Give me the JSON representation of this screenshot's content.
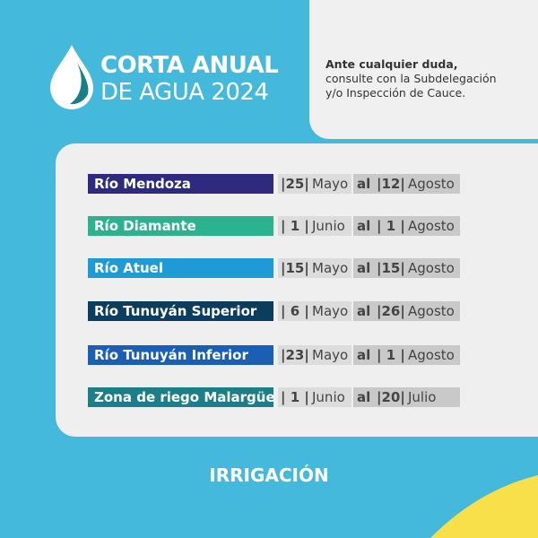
{
  "header": {
    "title_line1": "CORTA ANUAL",
    "title_line2": "DE AGUA 2024"
  },
  "note": {
    "lead": "Ante cualquier duda,",
    "line2": "consulte con la Subdelegación",
    "line3": "y/o Inspección de Cauce."
  },
  "connector": "al",
  "rows": [
    {
      "name": "Río Mendoza",
      "color": "#2e2a7e",
      "from_day": "|25|",
      "from_month": "Mayo",
      "to_day": "|12|",
      "to_month": "Agosto"
    },
    {
      "name": "Río Diamante",
      "color": "#2bb28e",
      "from_day": "| 1 |",
      "from_month": "Junio",
      "to_day": "| 1 |",
      "to_month": "Agosto"
    },
    {
      "name": "Río Atuel",
      "color": "#1e9bd7",
      "from_day": "|15|",
      "from_month": "Mayo",
      "to_day": "|15|",
      "to_month": "Agosto"
    },
    {
      "name": "Río Tunuyán Superior",
      "color": "#0d3d5c",
      "from_day": "| 6 |",
      "from_month": "Mayo",
      "to_day": "|26|",
      "to_month": "Agosto"
    },
    {
      "name": "Río Tunuyán Inferior",
      "color": "#1a5fb4",
      "from_day": "|23|",
      "from_month": "Mayo",
      "to_day": "| 1 |",
      "to_month": "Agosto"
    },
    {
      "name": "Zona de riego Malargüe",
      "color": "#1a7f86",
      "from_day": "| 1 |",
      "from_month": "Junio",
      "to_day": "|20|",
      "to_month": "Julio"
    }
  ],
  "footer": {
    "brand": "IRRIGACIÓN"
  }
}
